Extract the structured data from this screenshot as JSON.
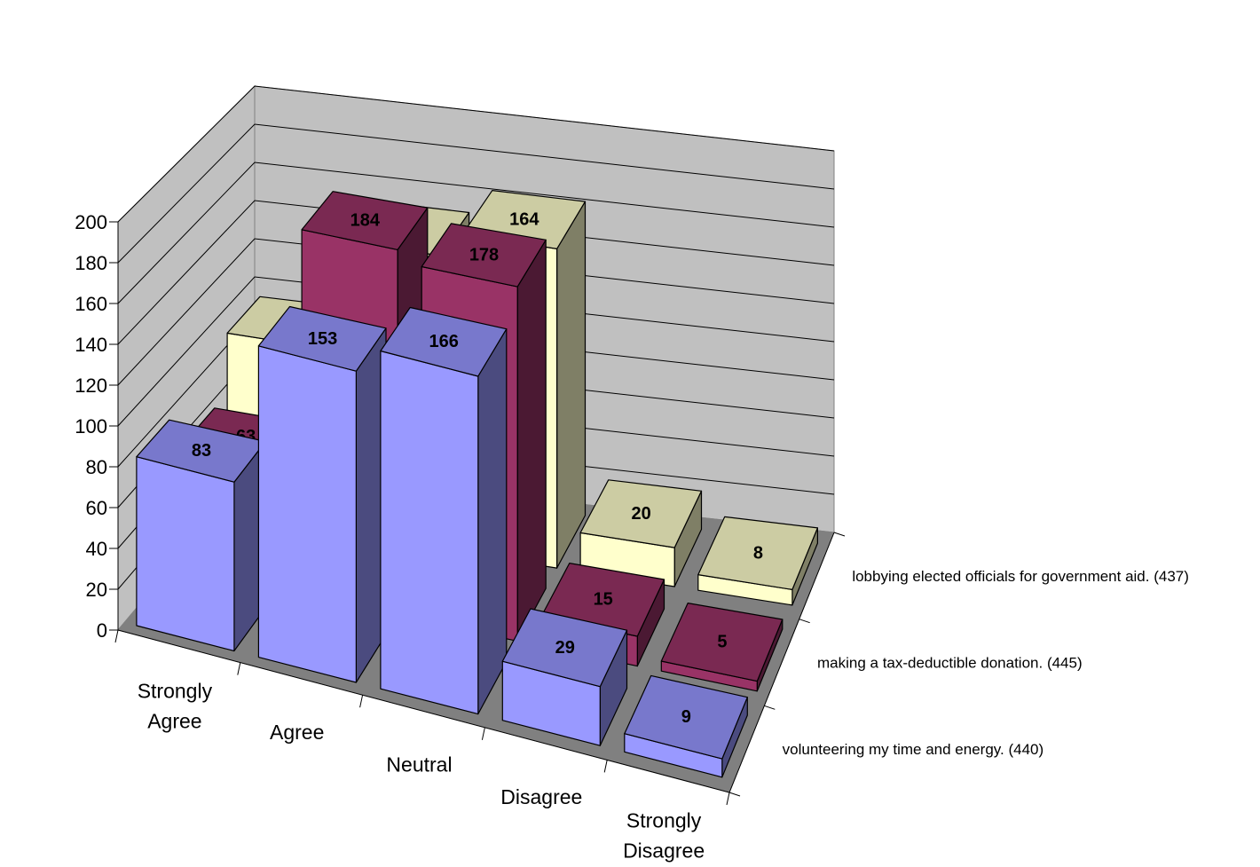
{
  "chart_data": {
    "type": "bar",
    "subtype": "3d-clustered-column",
    "categories": [
      "Strongly Agree",
      "Agree",
      "Neutral",
      "Disagree",
      "Strongly Disagree"
    ],
    "series": [
      {
        "name": "volunteering my time and energy. (440)",
        "values": [
          83,
          153,
          166,
          29,
          9
        ],
        "colors": {
          "front": "#9999FF",
          "side": "#4B4B7F",
          "top": "#7878CC"
        }
      },
      {
        "name": "making a tax-deductible donation. (445)",
        "values": [
          63,
          184,
          178,
          15,
          5
        ],
        "colors": {
          "front": "#993366",
          "side": "#4B1933",
          "top": "#7A2952"
        }
      },
      {
        "name": "lobbying elected officials for government aid. (437)",
        "values": [
          94,
          151,
          164,
          20,
          8
        ],
        "colors": {
          "front": "#FFFFCC",
          "side": "#7F7F66",
          "top": "#CCCCA3"
        }
      }
    ],
    "ylim": [
      0,
      200
    ],
    "yticks": [
      "0",
      "20",
      "40",
      "60",
      "80",
      "100",
      "120",
      "140",
      "160",
      "180",
      "200"
    ],
    "grid": true,
    "wall_colors": {
      "back": "#C0C0C0",
      "side": "#C0C0C0",
      "floor": "#808080"
    },
    "title": "",
    "xlabel": "",
    "ylabel": ""
  }
}
